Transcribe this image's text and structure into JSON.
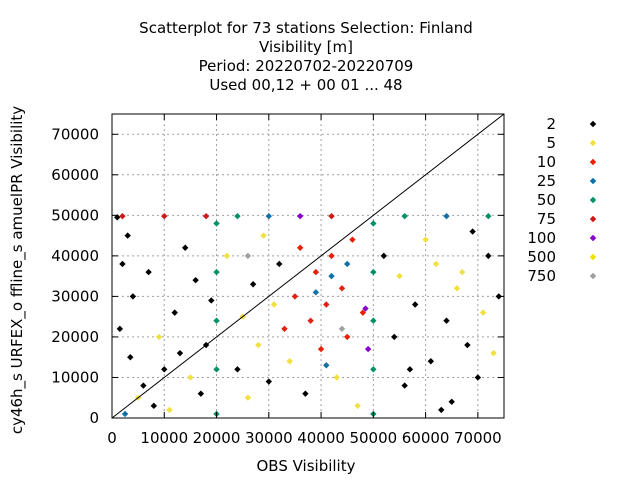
{
  "chart_data": {
    "type": "scatter",
    "title_lines": [
      "Scatterplot for   73 stations Selection: Finland",
      "Visibility [m]",
      "Period: 20220702-20220709",
      "Used  00,12  + 00 01 ... 48"
    ],
    "xlabel": "OBS Visibility",
    "ylabel": "cy46h_s URFEX_o ffline_s amuelPR Visibility",
    "xlim": [
      0,
      75000
    ],
    "ylim": [
      0,
      75000
    ],
    "x_ticks": [
      0,
      10000,
      20000,
      30000,
      40000,
      50000,
      60000,
      70000
    ],
    "y_ticks": [
      0,
      10000,
      20000,
      30000,
      40000,
      50000,
      60000,
      70000
    ],
    "grid": true,
    "diagonal_line": true,
    "legend_position": "right",
    "legend": [
      {
        "label": "2",
        "color": "#000000"
      },
      {
        "label": "5",
        "color": "#f0e040"
      },
      {
        "label": "10",
        "color": "#e8200a"
      },
      {
        "label": "25",
        "color": "#1070a8"
      },
      {
        "label": "50",
        "color": "#009068"
      },
      {
        "label": "75",
        "color": "#d01818"
      },
      {
        "label": "100",
        "color": "#8800d0"
      },
      {
        "label": "500",
        "color": "#f0e000"
      },
      {
        "label": "750",
        "color": "#a0a0a0"
      }
    ],
    "points": [
      {
        "x": 1000,
        "y": 49500,
        "c": "#000000"
      },
      {
        "x": 3000,
        "y": 45000,
        "c": "#000000"
      },
      {
        "x": 2000,
        "y": 38000,
        "c": "#000000"
      },
      {
        "x": 4000,
        "y": 30000,
        "c": "#000000"
      },
      {
        "x": 1500,
        "y": 22000,
        "c": "#000000"
      },
      {
        "x": 3500,
        "y": 15000,
        "c": "#000000"
      },
      {
        "x": 6000,
        "y": 8000,
        "c": "#000000"
      },
      {
        "x": 8000,
        "y": 3000,
        "c": "#000000"
      },
      {
        "x": 10000,
        "y": 12000,
        "c": "#000000"
      },
      {
        "x": 12000,
        "y": 26000,
        "c": "#000000"
      },
      {
        "x": 14000,
        "y": 42000,
        "c": "#000000"
      },
      {
        "x": 16000,
        "y": 34000,
        "c": "#000000"
      },
      {
        "x": 9000,
        "y": 20000,
        "c": "#f0e040"
      },
      {
        "x": 5000,
        "y": 5000,
        "c": "#f0e040"
      },
      {
        "x": 11000,
        "y": 2000,
        "c": "#f0e040"
      },
      {
        "x": 13000,
        "y": 16000,
        "c": "#000000"
      },
      {
        "x": 7000,
        "y": 36000,
        "c": "#000000"
      },
      {
        "x": 17000,
        "y": 6000,
        "c": "#000000"
      },
      {
        "x": 18000,
        "y": 18000,
        "c": "#000000"
      },
      {
        "x": 15000,
        "y": 10000,
        "c": "#f0e040"
      },
      {
        "x": 2500,
        "y": 1000,
        "c": "#1070a8"
      },
      {
        "x": 19000,
        "y": 29000,
        "c": "#000000"
      },
      {
        "x": 22000,
        "y": 40000,
        "c": "#f0e040"
      },
      {
        "x": 24000,
        "y": 12000,
        "c": "#000000"
      },
      {
        "x": 25000,
        "y": 25000,
        "c": "#f0e040"
      },
      {
        "x": 26000,
        "y": 5000,
        "c": "#f0e040"
      },
      {
        "x": 27000,
        "y": 33000,
        "c": "#000000"
      },
      {
        "x": 28000,
        "y": 18000,
        "c": "#f0e040"
      },
      {
        "x": 29000,
        "y": 45000,
        "c": "#f0e040"
      },
      {
        "x": 30000,
        "y": 9000,
        "c": "#000000"
      },
      {
        "x": 31000,
        "y": 28000,
        "c": "#f0e040"
      },
      {
        "x": 32000,
        "y": 38000,
        "c": "#000000"
      },
      {
        "x": 33000,
        "y": 22000,
        "c": "#e8200a"
      },
      {
        "x": 34000,
        "y": 14000,
        "c": "#f0e040"
      },
      {
        "x": 35000,
        "y": 30000,
        "c": "#e8200a"
      },
      {
        "x": 36000,
        "y": 42000,
        "c": "#e8200a"
      },
      {
        "x": 37000,
        "y": 6000,
        "c": "#000000"
      },
      {
        "x": 38000,
        "y": 24000,
        "c": "#e8200a"
      },
      {
        "x": 39000,
        "y": 36000,
        "c": "#e8200a"
      },
      {
        "x": 40000,
        "y": 17000,
        "c": "#e8200a"
      },
      {
        "x": 41000,
        "y": 28000,
        "c": "#e8200a"
      },
      {
        "x": 42000,
        "y": 40000,
        "c": "#e8200a"
      },
      {
        "x": 43000,
        "y": 10000,
        "c": "#f0e040"
      },
      {
        "x": 44000,
        "y": 32000,
        "c": "#e8200a"
      },
      {
        "x": 45000,
        "y": 20000,
        "c": "#e8200a"
      },
      {
        "x": 46000,
        "y": 44000,
        "c": "#e8200a"
      },
      {
        "x": 47000,
        "y": 3000,
        "c": "#f0e040"
      },
      {
        "x": 48000,
        "y": 26000,
        "c": "#e8200a"
      },
      {
        "x": 42000,
        "y": 35000,
        "c": "#1070a8"
      },
      {
        "x": 39000,
        "y": 31000,
        "c": "#1070a8"
      },
      {
        "x": 45000,
        "y": 38000,
        "c": "#1070a8"
      },
      {
        "x": 41000,
        "y": 13000,
        "c": "#1070a8"
      },
      {
        "x": 48500,
        "y": 27000,
        "c": "#8800d0"
      },
      {
        "x": 49000,
        "y": 17000,
        "c": "#8800d0"
      },
      {
        "x": 52000,
        "y": 40000,
        "c": "#000000"
      },
      {
        "x": 54000,
        "y": 20000,
        "c": "#000000"
      },
      {
        "x": 55000,
        "y": 35000,
        "c": "#f0e040"
      },
      {
        "x": 56000,
        "y": 8000,
        "c": "#000000"
      },
      {
        "x": 58000,
        "y": 28000,
        "c": "#000000"
      },
      {
        "x": 60000,
        "y": 44000,
        "c": "#f0e040"
      },
      {
        "x": 61000,
        "y": 14000,
        "c": "#000000"
      },
      {
        "x": 62000,
        "y": 38000,
        "c": "#f0e040"
      },
      {
        "x": 64000,
        "y": 24000,
        "c": "#000000"
      },
      {
        "x": 65000,
        "y": 4000,
        "c": "#000000"
      },
      {
        "x": 66000,
        "y": 32000,
        "c": "#f0e040"
      },
      {
        "x": 68000,
        "y": 18000,
        "c": "#000000"
      },
      {
        "x": 69000,
        "y": 46000,
        "c": "#000000"
      },
      {
        "x": 70000,
        "y": 10000,
        "c": "#000000"
      },
      {
        "x": 71000,
        "y": 26000,
        "c": "#f0e040"
      },
      {
        "x": 72000,
        "y": 40000,
        "c": "#000000"
      },
      {
        "x": 73000,
        "y": 16000,
        "c": "#f0e040"
      },
      {
        "x": 74000,
        "y": 30000,
        "c": "#000000"
      },
      {
        "x": 63000,
        "y": 2000,
        "c": "#000000"
      },
      {
        "x": 57000,
        "y": 12000,
        "c": "#000000"
      },
      {
        "x": 67000,
        "y": 36000,
        "c": "#f0e040"
      },
      {
        "x": 20000,
        "y": 1000,
        "c": "#009068"
      },
      {
        "x": 20000,
        "y": 12000,
        "c": "#009068"
      },
      {
        "x": 20000,
        "y": 24000,
        "c": "#009068"
      },
      {
        "x": 20000,
        "y": 36000,
        "c": "#009068"
      },
      {
        "x": 20000,
        "y": 48000,
        "c": "#009068"
      },
      {
        "x": 50000,
        "y": 1000,
        "c": "#009068"
      },
      {
        "x": 50000,
        "y": 12000,
        "c": "#009068"
      },
      {
        "x": 50000,
        "y": 24000,
        "c": "#009068"
      },
      {
        "x": 50000,
        "y": 36000,
        "c": "#009068"
      },
      {
        "x": 50000,
        "y": 48000,
        "c": "#009068"
      },
      {
        "x": 2000,
        "y": 49800,
        "c": "#d01818"
      },
      {
        "x": 10000,
        "y": 49800,
        "c": "#d01818"
      },
      {
        "x": 18000,
        "y": 49800,
        "c": "#d01818"
      },
      {
        "x": 24000,
        "y": 49800,
        "c": "#009068"
      },
      {
        "x": 30000,
        "y": 49800,
        "c": "#1070a8"
      },
      {
        "x": 36000,
        "y": 49800,
        "c": "#8800d0"
      },
      {
        "x": 42000,
        "y": 49800,
        "c": "#d01818"
      },
      {
        "x": 56000,
        "y": 49800,
        "c": "#009068"
      },
      {
        "x": 64000,
        "y": 49800,
        "c": "#1070a8"
      },
      {
        "x": 72000,
        "y": 49800,
        "c": "#009068"
      },
      {
        "x": 44000,
        "y": 22000,
        "c": "#a0a0a0"
      },
      {
        "x": 26000,
        "y": 40000,
        "c": "#a0a0a0"
      }
    ]
  }
}
